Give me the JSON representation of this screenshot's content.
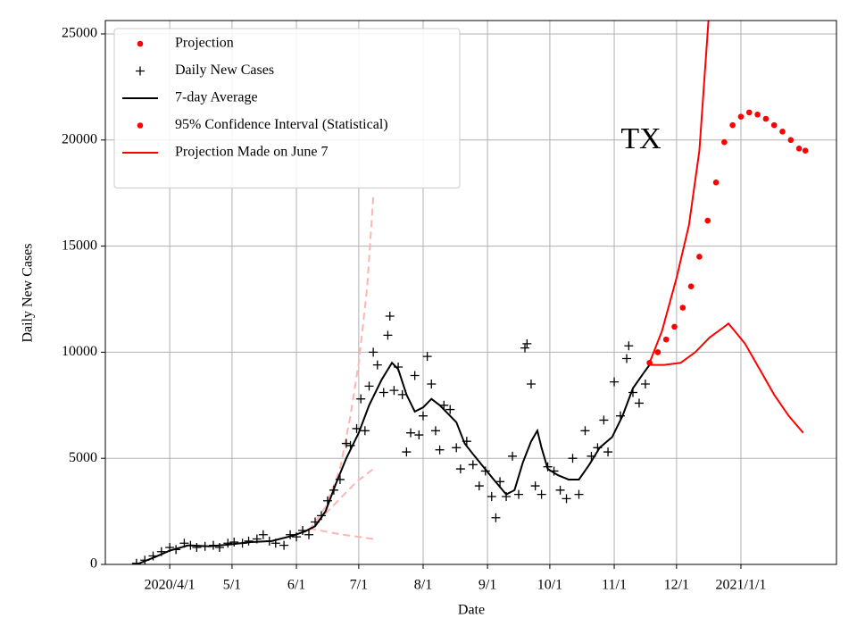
{
  "chart_data": {
    "type": "line",
    "xlabel": "Date",
    "ylabel": "Daily New Cases",
    "annotation": "TX",
    "xlim": [
      "2020-03-01",
      "2021-02-16"
    ],
    "xticks": [
      {
        "value": "2020-04-01",
        "label": "2020/4/1"
      },
      {
        "value": "2020-05-01",
        "label": "5/1"
      },
      {
        "value": "2020-06-01",
        "label": "6/1"
      },
      {
        "value": "2020-07-01",
        "label": "7/1"
      },
      {
        "value": "2020-08-01",
        "label": "8/1"
      },
      {
        "value": "2020-09-01",
        "label": "9/1"
      },
      {
        "value": "2020-10-01",
        "label": "10/1"
      },
      {
        "value": "2020-11-01",
        "label": "11/1"
      },
      {
        "value": "2020-12-01",
        "label": "12/1"
      },
      {
        "value": "2021-01-01",
        "label": "2021/1/1"
      }
    ],
    "ylim": [
      0,
      25630
    ],
    "yticks": [
      0,
      5000,
      10000,
      15000,
      20000,
      25000
    ],
    "grid": true,
    "legend": "upper left",
    "series": [
      {
        "name": "Projection",
        "color": "#ff0000",
        "style": "dot",
        "legend_marker": "dot",
        "x": [
          "2020-11-18",
          "2020-11-22",
          "2020-11-26",
          "2020-11-30",
          "2020-12-04",
          "2020-12-08",
          "2020-12-12",
          "2020-12-16",
          "2020-12-20",
          "2020-12-24",
          "2020-12-28",
          "2021-01-01",
          "2021-01-05",
          "2021-01-09",
          "2021-01-13",
          "2021-01-17",
          "2021-01-21",
          "2021-01-25",
          "2021-01-29",
          "2021-02-01"
        ],
        "values": [
          9500,
          10000,
          10600,
          11200,
          12100,
          13100,
          14500,
          16200,
          18000,
          19900,
          20700,
          21100,
          21300,
          21200,
          21000,
          20700,
          20400,
          20000,
          19600,
          19500
        ]
      },
      {
        "name": "Daily New Cases",
        "color": "#000000",
        "style": "plus",
        "legend_marker": "plus",
        "x": [
          "2020-03-16",
          "2020-03-20",
          "2020-03-24",
          "2020-03-28",
          "2020-04-01",
          "2020-04-04",
          "2020-04-08",
          "2020-04-11",
          "2020-04-14",
          "2020-04-18",
          "2020-04-22",
          "2020-04-25",
          "2020-04-29",
          "2020-05-02",
          "2020-05-06",
          "2020-05-09",
          "2020-05-13",
          "2020-05-16",
          "2020-05-19",
          "2020-05-22",
          "2020-05-26",
          "2020-05-29",
          "2020-06-01",
          "2020-06-04",
          "2020-06-07",
          "2020-06-10",
          "2020-06-13",
          "2020-06-16",
          "2020-06-19",
          "2020-06-22",
          "2020-06-25",
          "2020-06-27",
          "2020-06-30",
          "2020-07-02",
          "2020-07-04",
          "2020-07-06",
          "2020-07-08",
          "2020-07-10",
          "2020-07-13",
          "2020-07-15",
          "2020-07-16",
          "2020-07-18",
          "2020-07-20",
          "2020-07-22",
          "2020-07-24",
          "2020-07-26",
          "2020-07-28",
          "2020-07-30",
          "2020-08-01",
          "2020-08-03",
          "2020-08-05",
          "2020-08-07",
          "2020-08-09",
          "2020-08-11",
          "2020-08-14",
          "2020-08-17",
          "2020-08-19",
          "2020-08-22",
          "2020-08-25",
          "2020-08-28",
          "2020-08-31",
          "2020-09-03",
          "2020-09-05",
          "2020-09-07",
          "2020-09-10",
          "2020-09-13",
          "2020-09-16",
          "2020-09-19",
          "2020-09-20",
          "2020-09-22",
          "2020-09-24",
          "2020-09-27",
          "2020-09-30",
          "2020-10-03",
          "2020-10-06",
          "2020-10-09",
          "2020-10-12",
          "2020-10-15",
          "2020-10-18",
          "2020-10-21",
          "2020-10-24",
          "2020-10-27",
          "2020-10-29",
          "2020-11-01",
          "2020-11-04",
          "2020-11-07",
          "2020-11-08",
          "2020-11-10",
          "2020-11-13",
          "2020-11-16"
        ],
        "values": [
          50,
          200,
          400,
          600,
          800,
          700,
          1000,
          900,
          800,
          850,
          900,
          800,
          1000,
          1050,
          1000,
          1100,
          1200,
          1400,
          1100,
          1000,
          900,
          1400,
          1300,
          1600,
          1400,
          2000,
          2300,
          3000,
          3500,
          4000,
          5700,
          5600,
          6400,
          7800,
          6300,
          8400,
          10000,
          9400,
          8100,
          10800,
          11700,
          8200,
          9300,
          8000,
          5300,
          6200,
          8900,
          6100,
          7000,
          9800,
          8500,
          6300,
          5400,
          7500,
          7300,
          5500,
          4500,
          5800,
          4700,
          3700,
          4400,
          3200,
          2200,
          3900,
          3200,
          5100,
          3300,
          10200,
          10400,
          8500,
          3700,
          3300,
          4600,
          4400,
          3500,
          3100,
          5000,
          3300,
          6300,
          5100,
          5500,
          6800,
          5300,
          8600,
          7000,
          9700,
          10300,
          8100,
          7600,
          8500
        ]
      },
      {
        "name": "7-day Average",
        "color": "#000000",
        "style": "line",
        "legend_marker": "line",
        "x": [
          "2020-03-16",
          "2020-03-25",
          "2020-04-01",
          "2020-04-10",
          "2020-04-20",
          "2020-05-01",
          "2020-05-10",
          "2020-05-20",
          "2020-05-30",
          "2020-06-05",
          "2020-06-10",
          "2020-06-15",
          "2020-06-20",
          "2020-06-25",
          "2020-07-01",
          "2020-07-06",
          "2020-07-12",
          "2020-07-17",
          "2020-07-20",
          "2020-07-24",
          "2020-07-28",
          "2020-08-01",
          "2020-08-05",
          "2020-08-09",
          "2020-08-13",
          "2020-08-17",
          "2020-08-21",
          "2020-08-25",
          "2020-08-30",
          "2020-09-04",
          "2020-09-10",
          "2020-09-14",
          "2020-09-18",
          "2020-09-22",
          "2020-09-25",
          "2020-09-27",
          "2020-09-30",
          "2020-10-05",
          "2020-10-10",
          "2020-10-15",
          "2020-10-20",
          "2020-10-25",
          "2020-10-31",
          "2020-11-05",
          "2020-11-10",
          "2020-11-15",
          "2020-11-18"
        ],
        "values": [
          0,
          350,
          650,
          900,
          850,
          950,
          1050,
          1100,
          1350,
          1550,
          1800,
          2500,
          3800,
          5000,
          6200,
          7500,
          8700,
          9500,
          9200,
          8000,
          7200,
          7400,
          7800,
          7500,
          7100,
          6700,
          5700,
          5200,
          4600,
          4000,
          3300,
          3500,
          4800,
          5800,
          6300,
          5500,
          4500,
          4200,
          4000,
          4000,
          4700,
          5500,
          6000,
          7000,
          8300,
          9000,
          9400
        ]
      },
      {
        "name": "95% Confidence Interval (Statistical)",
        "color": "#ff0000",
        "style": "line",
        "legend_marker": "dot",
        "x": [
          "2020-11-18",
          "2020-11-24",
          "2020-12-01",
          "2020-12-07",
          "2020-12-12",
          "2020-12-17"
        ],
        "values": [
          9500,
          11000,
          13500,
          16000,
          19500,
          26500
        ]
      },
      {
        "color": "#ff0000",
        "style": "line",
        "x": [
          "2020-11-18",
          "2020-11-25",
          "2020-12-03",
          "2020-12-10",
          "2020-12-17",
          "2020-12-24",
          "2020-12-26",
          "2020-12-29",
          "2021-01-03",
          "2021-01-10",
          "2021-01-17",
          "2021-01-24",
          "2021-01-31"
        ],
        "values": [
          9400,
          9400,
          9500,
          10000,
          10700,
          11200,
          11350,
          11000,
          10400,
          9200,
          8000,
          7000,
          6200
        ]
      },
      {
        "name": "Projection Made on June 7",
        "color": "#ffb3b3",
        "legend_color": "#ff0000",
        "style": "dash",
        "legend_marker": "line",
        "x": [
          "2020-06-07",
          "2020-06-15",
          "2020-06-23",
          "2020-06-30",
          "2020-07-08"
        ],
        "values": [
          1600,
          2400,
          3200,
          3900,
          4500
        ]
      },
      {
        "color": "#ffb3b3",
        "style": "dash",
        "x": [
          "2020-06-07",
          "2020-06-15",
          "2020-06-22",
          "2020-06-27",
          "2020-07-01",
          "2020-07-05",
          "2020-07-08"
        ],
        "values": [
          1600,
          2700,
          4500,
          7000,
          9500,
          13000,
          17300
        ]
      },
      {
        "color": "#ffb3b3",
        "style": "dash",
        "x": [
          "2020-06-07",
          "2020-06-15",
          "2020-06-23",
          "2020-07-01",
          "2020-07-08"
        ],
        "values": [
          1700,
          1550,
          1400,
          1300,
          1200
        ]
      }
    ]
  }
}
